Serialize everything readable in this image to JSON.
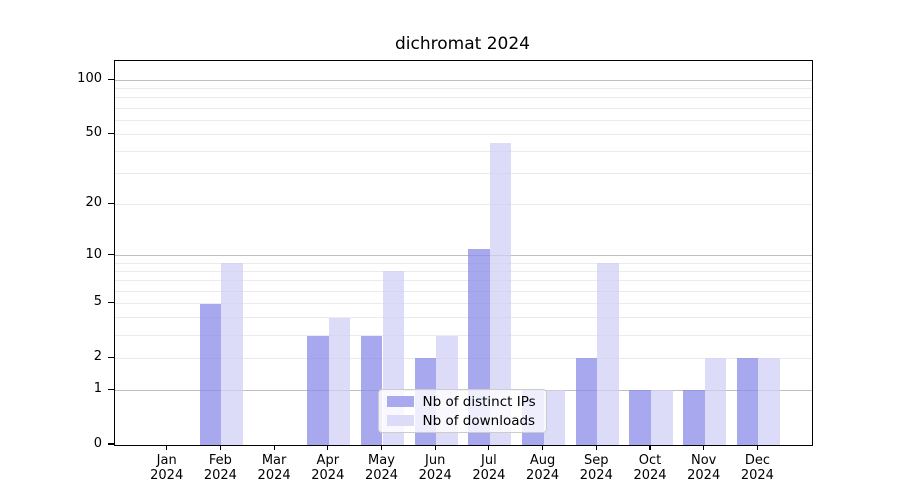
{
  "title": "dichromat 2024",
  "legend": {
    "items": [
      {
        "label": "Nb of distinct IPs",
        "series": "ips"
      },
      {
        "label": "Nb of downloads",
        "series": "downloads"
      }
    ]
  },
  "colors": {
    "ips_bar": "rgba(134,134,232,0.72)",
    "downloads_bar": "rgba(206,206,245,0.72)",
    "ips_swatch": "#a9a9ee",
    "downloads_swatch": "#dcdcf8",
    "major_gridline": "#c0c0c0",
    "minor_gridline": "#ebebeb",
    "axis": "#000000",
    "legend_border": "#cccccc",
    "text": "#000000"
  },
  "chart_data": {
    "type": "bar",
    "title": "dichromat 2024",
    "categories": [
      "Jan",
      "Feb",
      "Mar",
      "Apr",
      "May",
      "Jun",
      "Jul",
      "Aug",
      "Sep",
      "Oct",
      "Nov",
      "Dec"
    ],
    "x_year_label": "2024",
    "series": [
      {
        "name": "Nb of distinct IPs",
        "values": [
          0,
          5,
          0,
          3,
          3,
          2,
          11,
          1,
          2,
          1,
          1,
          2
        ]
      },
      {
        "name": "Nb of downloads",
        "values": [
          0,
          9,
          0,
          4,
          8,
          3,
          45,
          1,
          9,
          1,
          2,
          2
        ]
      }
    ],
    "y_scale": "log1p",
    "y_ticks": [
      0,
      1,
      2,
      5,
      10,
      20,
      50,
      100
    ],
    "y_major_gridlines": [
      1,
      10,
      100
    ],
    "y_minor_gridlines": [
      2,
      3,
      4,
      5,
      6,
      7,
      8,
      9,
      20,
      30,
      40,
      50,
      60,
      70,
      80,
      90
    ],
    "ylim_top": 130,
    "grid": "horizontal",
    "legend_position": "inside-bottom-center"
  }
}
